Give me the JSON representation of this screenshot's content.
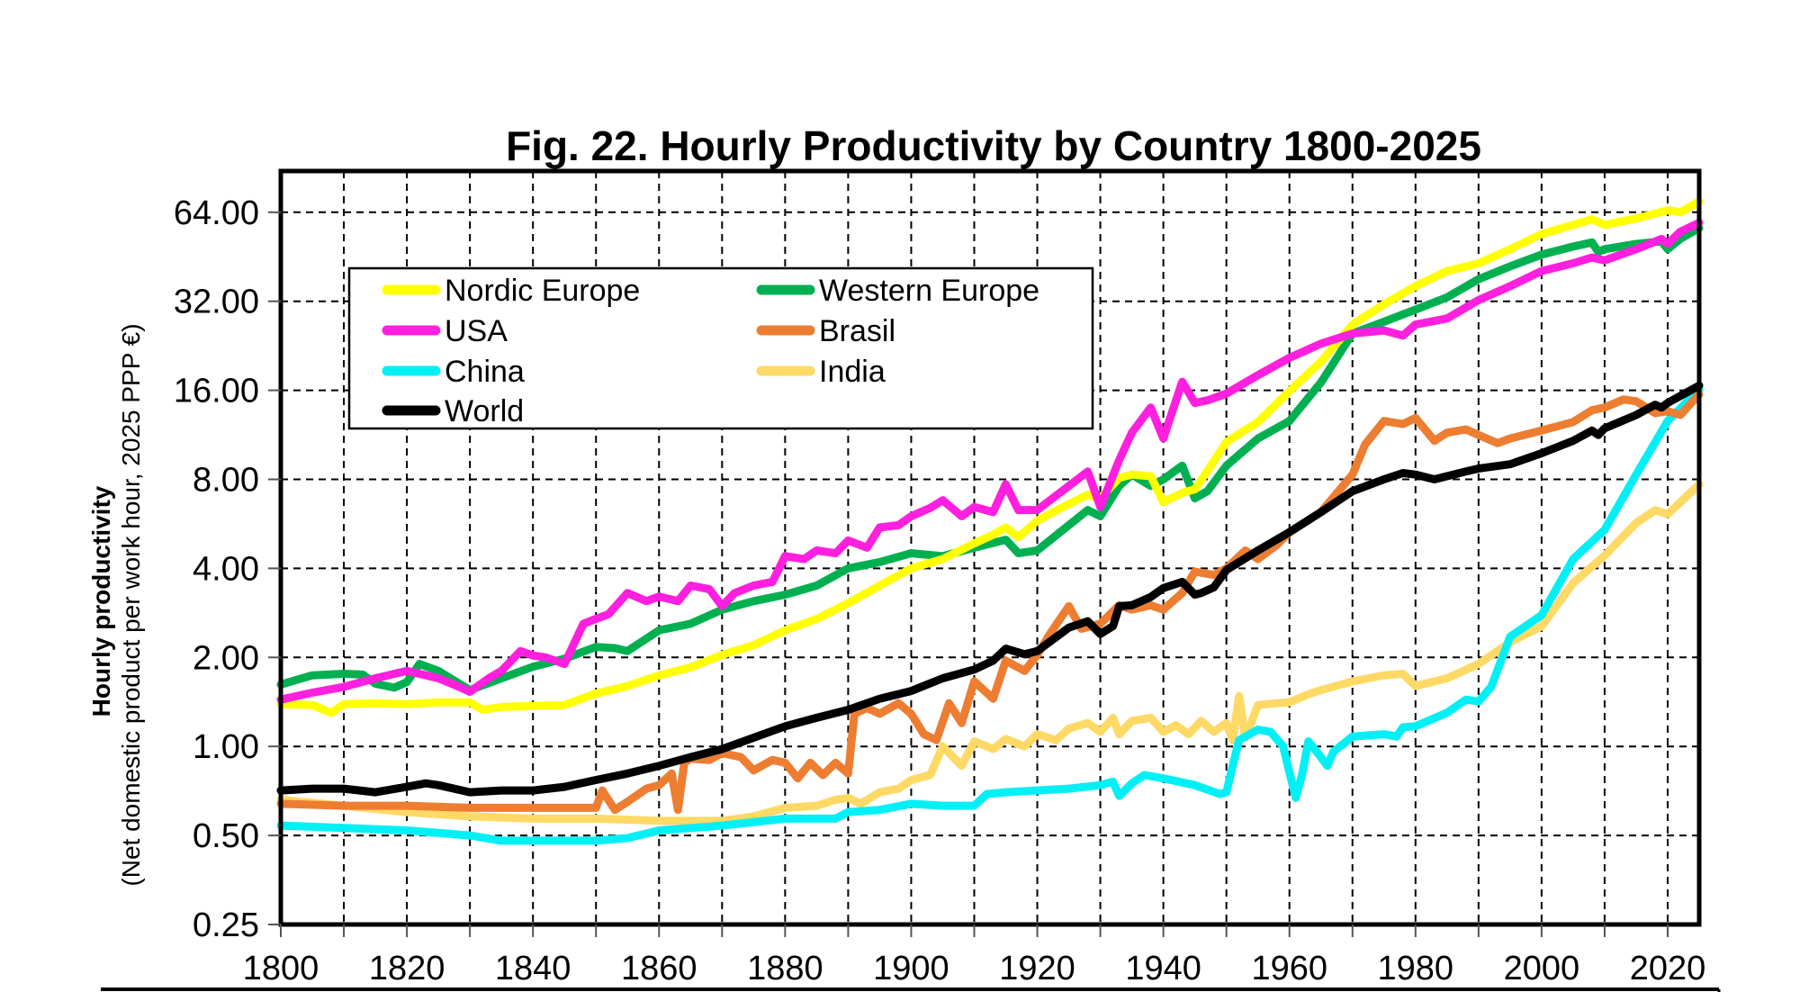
{
  "chart_data": {
    "type": "line",
    "title": "Fig. 22. Hourly Productivity by Country 1800-2025",
    "xlabel": "",
    "ylabel": "Hourly productivity",
    "ylabel_sub": "(Net domestic product per work hour, 2025 PPP €)",
    "yscale": "log2",
    "xlim": [
      1800,
      2025
    ],
    "ylim": [
      0.25,
      90
    ],
    "grid": true,
    "legend_position": "top-left",
    "x_ticks": [
      "1800",
      "1820",
      "1840",
      "1860",
      "1880",
      "1900",
      "1920",
      "1940",
      "1960",
      "1980",
      "2000",
      "2020"
    ],
    "x_tick_values": [
      1800,
      1820,
      1840,
      1860,
      1880,
      1900,
      1920,
      1940,
      1960,
      1980,
      2000,
      2020
    ],
    "y_ticks": [
      "0.25",
      "0.50",
      "1.00",
      "2.00",
      "4.00",
      "8.00",
      "16.00",
      "32.00",
      "64.00"
    ],
    "y_tick_values": [
      0.25,
      0.5,
      1,
      2,
      4,
      8,
      16,
      32,
      64
    ],
    "series": [
      {
        "name": "Nordic Europe",
        "color": "#FFFF00",
        "x": [
          1800,
          1805,
          1808,
          1810,
          1815,
          1820,
          1825,
          1830,
          1832,
          1835,
          1840,
          1845,
          1850,
          1855,
          1860,
          1865,
          1870,
          1875,
          1880,
          1885,
          1890,
          1895,
          1900,
          1905,
          1910,
          1913,
          1915,
          1917,
          1920,
          1925,
          1928,
          1930,
          1933,
          1935,
          1938,
          1940,
          1943,
          1945,
          1948,
          1950,
          1955,
          1960,
          1965,
          1970,
          1975,
          1980,
          1985,
          1990,
          1995,
          2000,
          2005,
          2008,
          2010,
          2015,
          2020,
          2022,
          2025
        ],
        "y": [
          1.39,
          1.38,
          1.3,
          1.39,
          1.4,
          1.39,
          1.41,
          1.41,
          1.33,
          1.36,
          1.37,
          1.38,
          1.51,
          1.6,
          1.74,
          1.85,
          2.04,
          2.2,
          2.47,
          2.7,
          3.05,
          3.5,
          4.0,
          4.3,
          4.86,
          5.2,
          5.5,
          5.1,
          5.8,
          6.6,
          7.1,
          6.9,
          8.1,
          8.3,
          8.2,
          6.7,
          7.2,
          7.4,
          9.2,
          10.7,
          12.5,
          15.9,
          20.0,
          26.7,
          31.3,
          36.0,
          40.5,
          43.0,
          48.0,
          54.0,
          58.0,
          60.6,
          58.0,
          61.0,
          65.0,
          64.0,
          69.6
        ]
      },
      {
        "name": "Western Europe",
        "color": "#00B050",
        "x": [
          1800,
          1805,
          1810,
          1813,
          1815,
          1818,
          1820,
          1822,
          1825,
          1830,
          1835,
          1840,
          1845,
          1850,
          1853,
          1855,
          1860,
          1865,
          1870,
          1875,
          1880,
          1885,
          1890,
          1895,
          1900,
          1905,
          1910,
          1915,
          1917,
          1920,
          1925,
          1928,
          1930,
          1933,
          1935,
          1938,
          1940,
          1943,
          1945,
          1947,
          1950,
          1955,
          1960,
          1965,
          1970,
          1975,
          1980,
          1985,
          1990,
          1995,
          2000,
          2005,
          2008,
          2009,
          2010,
          2015,
          2019,
          2020,
          2022,
          2025
        ],
        "y": [
          1.62,
          1.74,
          1.76,
          1.75,
          1.63,
          1.58,
          1.65,
          1.9,
          1.8,
          1.55,
          1.7,
          1.86,
          1.98,
          2.17,
          2.15,
          2.1,
          2.47,
          2.6,
          2.9,
          3.1,
          3.26,
          3.5,
          4.0,
          4.2,
          4.5,
          4.4,
          4.7,
          5.0,
          4.5,
          4.6,
          5.6,
          6.3,
          6.0,
          7.6,
          8.3,
          7.6,
          8.0,
          8.9,
          6.9,
          7.3,
          8.9,
          11.0,
          12.6,
          17.0,
          24.9,
          27.3,
          30.0,
          33.0,
          38.0,
          42.0,
          46.0,
          49.0,
          50.6,
          47.0,
          48.0,
          50.0,
          51.0,
          48.0,
          52.0,
          56.6
        ]
      },
      {
        "name": "USA",
        "color": "#FF1FDE",
        "x": [
          1800,
          1805,
          1810,
          1815,
          1820,
          1825,
          1828,
          1830,
          1833,
          1835,
          1838,
          1840,
          1842,
          1845,
          1848,
          1850,
          1852,
          1855,
          1858,
          1860,
          1863,
          1865,
          1868,
          1870,
          1872,
          1875,
          1878,
          1880,
          1883,
          1885,
          1888,
          1890,
          1893,
          1895,
          1898,
          1900,
          1903,
          1905,
          1908,
          1910,
          1913,
          1915,
          1917,
          1920,
          1925,
          1928,
          1930,
          1933,
          1935,
          1938,
          1940,
          1943,
          1945,
          1947,
          1950,
          1955,
          1960,
          1965,
          1970,
          1975,
          1978,
          1980,
          1985,
          1990,
          1995,
          2000,
          2005,
          2008,
          2010,
          2015,
          2019,
          2020,
          2022,
          2025
        ],
        "y": [
          1.44,
          1.52,
          1.59,
          1.7,
          1.8,
          1.7,
          1.6,
          1.53,
          1.7,
          1.8,
          2.1,
          2.03,
          2.0,
          1.9,
          2.6,
          2.7,
          2.8,
          3.3,
          3.1,
          3.21,
          3.1,
          3.5,
          3.4,
          2.98,
          3.3,
          3.5,
          3.6,
          4.4,
          4.3,
          4.6,
          4.5,
          4.97,
          4.7,
          5.5,
          5.6,
          6.0,
          6.4,
          6.8,
          6.0,
          6.45,
          6.2,
          7.7,
          6.3,
          6.3,
          7.6,
          8.5,
          6.45,
          9.3,
          11.5,
          14.0,
          11.0,
          17.1,
          14.5,
          14.8,
          15.6,
          18.0,
          20.6,
          23.0,
          24.9,
          25.5,
          24.5,
          26.7,
          28.0,
          32.3,
          36.0,
          40.5,
          43.0,
          45.0,
          44.0,
          48.0,
          52.0,
          50.0,
          55.0,
          59.0
        ]
      },
      {
        "name": "Brasil",
        "color": "#ED7D31",
        "x": [
          1800,
          1810,
          1820,
          1830,
          1840,
          1850,
          1851,
          1853,
          1855,
          1858,
          1860,
          1862,
          1863,
          1864,
          1865,
          1868,
          1870,
          1873,
          1875,
          1878,
          1880,
          1882,
          1884,
          1886,
          1888,
          1890,
          1891,
          1893,
          1895,
          1898,
          1900,
          1902,
          1904,
          1906,
          1908,
          1910,
          1913,
          1915,
          1918,
          1920,
          1922,
          1925,
          1927,
          1930,
          1933,
          1935,
          1938,
          1940,
          1943,
          1945,
          1948,
          1950,
          1953,
          1955,
          1958,
          1960,
          1965,
          1970,
          1972,
          1975,
          1978,
          1980,
          1983,
          1985,
          1988,
          1990,
          1993,
          1995,
          2000,
          2005,
          2008,
          2010,
          2013,
          2015,
          2018,
          2020,
          2022,
          2025
        ],
        "y": [
          0.64,
          0.63,
          0.63,
          0.62,
          0.62,
          0.62,
          0.71,
          0.61,
          0.65,
          0.72,
          0.74,
          0.81,
          0.61,
          0.88,
          0.91,
          0.9,
          0.95,
          0.92,
          0.83,
          0.9,
          0.88,
          0.78,
          0.88,
          0.8,
          0.88,
          0.81,
          1.29,
          1.35,
          1.29,
          1.4,
          1.29,
          1.1,
          1.05,
          1.4,
          1.2,
          1.66,
          1.45,
          1.95,
          1.8,
          2.04,
          2.4,
          2.98,
          2.5,
          2.6,
          3.0,
          2.9,
          3.0,
          2.9,
          3.3,
          3.9,
          3.8,
          4.0,
          4.6,
          4.3,
          4.8,
          5.3,
          6.2,
          8.3,
          10.5,
          12.6,
          12.3,
          12.9,
          10.8,
          11.5,
          11.8,
          11.3,
          10.6,
          11.0,
          11.7,
          12.5,
          13.7,
          14.0,
          14.9,
          14.7,
          13.4,
          13.6,
          13.2,
          15.5
        ]
      },
      {
        "name": "China",
        "color": "#00F0F5",
        "x": [
          1800,
          1810,
          1820,
          1830,
          1835,
          1840,
          1850,
          1855,
          1860,
          1865,
          1870,
          1880,
          1888,
          1890,
          1895,
          1900,
          1905,
          1910,
          1912,
          1915,
          1920,
          1925,
          1930,
          1932,
          1933,
          1935,
          1937,
          1940,
          1945,
          1949,
          1950,
          1951,
          1952,
          1955,
          1957,
          1959,
          1961,
          1962,
          1963,
          1965,
          1966,
          1967,
          1970,
          1975,
          1977,
          1978,
          1980,
          1985,
          1988,
          1990,
          1992,
          1995,
          2000,
          2005,
          2010,
          2015,
          2020,
          2025
        ],
        "y": [
          0.54,
          0.53,
          0.52,
          0.5,
          0.48,
          0.48,
          0.48,
          0.49,
          0.52,
          0.53,
          0.54,
          0.57,
          0.57,
          0.6,
          0.61,
          0.64,
          0.63,
          0.63,
          0.69,
          0.7,
          0.71,
          0.72,
          0.74,
          0.76,
          0.68,
          0.75,
          0.8,
          0.78,
          0.74,
          0.69,
          0.7,
          0.86,
          1.05,
          1.14,
          1.12,
          1.0,
          0.67,
          0.8,
          1.04,
          0.92,
          0.86,
          0.96,
          1.08,
          1.1,
          1.08,
          1.16,
          1.17,
          1.3,
          1.44,
          1.42,
          1.59,
          2.35,
          2.78,
          4.3,
          5.4,
          8.3,
          12.6,
          16.1
        ]
      },
      {
        "name": "India",
        "color": "#FFD966",
        "x": [
          1800,
          1810,
          1820,
          1830,
          1840,
          1850,
          1860,
          1870,
          1875,
          1880,
          1885,
          1888,
          1890,
          1892,
          1895,
          1898,
          1900,
          1903,
          1905,
          1908,
          1910,
          1913,
          1915,
          1918,
          1920,
          1923,
          1925,
          1928,
          1930,
          1932,
          1933,
          1935,
          1938,
          1940,
          1942,
          1944,
          1946,
          1948,
          1950,
          1951,
          1952,
          1953,
          1955,
          1958,
          1960,
          1963,
          1965,
          1970,
          1975,
          1978,
          1980,
          1985,
          1990,
          1995,
          2000,
          2005,
          2010,
          2015,
          2018,
          2020,
          2025
        ],
        "y": [
          0.66,
          0.63,
          0.6,
          0.58,
          0.57,
          0.57,
          0.56,
          0.56,
          0.58,
          0.62,
          0.63,
          0.66,
          0.67,
          0.64,
          0.7,
          0.72,
          0.77,
          0.8,
          1.0,
          0.86,
          1.04,
          0.98,
          1.06,
          1.0,
          1.1,
          1.05,
          1.15,
          1.2,
          1.12,
          1.25,
          1.1,
          1.22,
          1.25,
          1.12,
          1.18,
          1.1,
          1.22,
          1.12,
          1.2,
          1.05,
          1.48,
          1.07,
          1.38,
          1.4,
          1.41,
          1.5,
          1.55,
          1.66,
          1.74,
          1.76,
          1.6,
          1.7,
          1.9,
          2.25,
          2.55,
          3.57,
          4.42,
          5.7,
          6.3,
          6.1,
          7.7
        ]
      },
      {
        "name": "World",
        "color": "#000000",
        "x": [
          1800,
          1805,
          1810,
          1815,
          1820,
          1823,
          1825,
          1830,
          1835,
          1840,
          1845,
          1850,
          1855,
          1860,
          1865,
          1870,
          1875,
          1880,
          1885,
          1890,
          1895,
          1900,
          1905,
          1910,
          1913,
          1915,
          1918,
          1920,
          1925,
          1928,
          1930,
          1932,
          1933,
          1935,
          1938,
          1940,
          1943,
          1945,
          1946,
          1948,
          1950,
          1955,
          1960,
          1965,
          1970,
          1975,
          1978,
          1980,
          1983,
          1985,
          1988,
          1990,
          1995,
          2000,
          2005,
          2008,
          2009,
          2010,
          2015,
          2018,
          2019,
          2020,
          2025
        ],
        "y": [
          0.71,
          0.72,
          0.72,
          0.7,
          0.73,
          0.75,
          0.74,
          0.7,
          0.71,
          0.71,
          0.73,
          0.77,
          0.81,
          0.86,
          0.92,
          0.98,
          1.07,
          1.17,
          1.25,
          1.33,
          1.45,
          1.54,
          1.7,
          1.82,
          1.95,
          2.14,
          2.05,
          2.1,
          2.52,
          2.65,
          2.4,
          2.55,
          2.98,
          3.0,
          3.2,
          3.43,
          3.6,
          3.26,
          3.3,
          3.45,
          3.95,
          4.6,
          5.3,
          6.2,
          7.3,
          8.0,
          8.4,
          8.3,
          8.0,
          8.2,
          8.5,
          8.7,
          9.0,
          9.8,
          10.8,
          11.7,
          11.3,
          11.9,
          13.2,
          14.3,
          14.0,
          14.5,
          16.6
        ]
      }
    ]
  },
  "legend": {
    "items": [
      {
        "label": "Nordic Europe",
        "color": "#FFFF00"
      },
      {
        "label": "Western Europe",
        "color": "#00B050"
      },
      {
        "label": "USA",
        "color": "#FF1FDE"
      },
      {
        "label": "Brasil",
        "color": "#ED7D31"
      },
      {
        "label": "China",
        "color": "#00F0F5"
      },
      {
        "label": "India",
        "color": "#FFD966"
      },
      {
        "label": "World",
        "color": "#000000"
      }
    ]
  }
}
